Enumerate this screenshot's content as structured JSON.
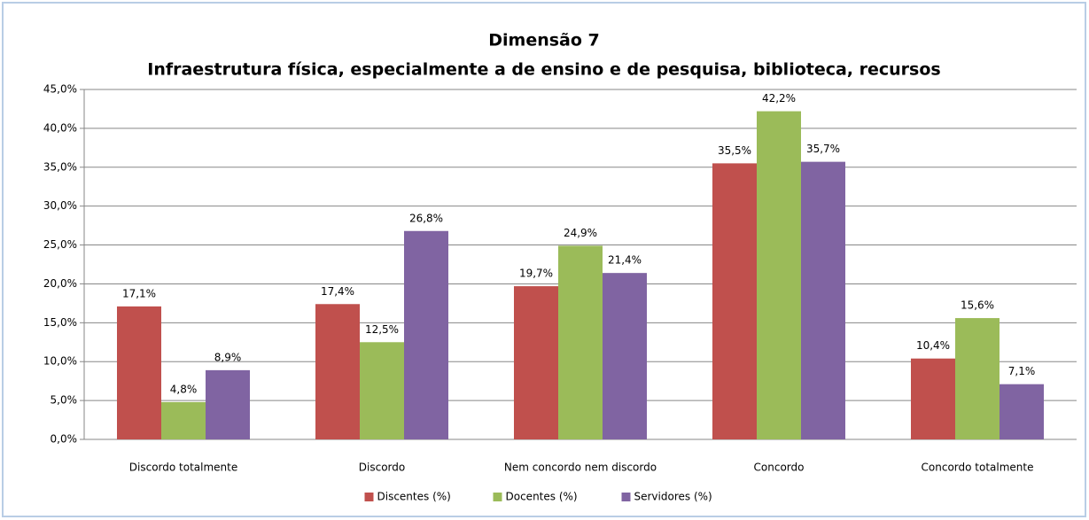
{
  "chart_data": {
    "type": "bar",
    "title": "Dimensão 7",
    "subtitle": "Infraestrutura física, especialmente a de ensino e  de pesquisa, biblioteca, recursos",
    "categories": [
      "Discordo totalmente",
      "Discordo",
      "Nem concordo nem discordo",
      "Concordo",
      "Concordo totalmente"
    ],
    "series": [
      {
        "name": "Discentes (%)",
        "color": "#c0504d",
        "values": [
          17.1,
          17.4,
          19.7,
          35.5,
          10.4
        ],
        "value_labels": [
          "17,1%",
          "17,4%",
          "19,7%",
          "35,5%",
          "10,4%"
        ]
      },
      {
        "name": "Docentes (%)",
        "color": "#9bbb59",
        "values": [
          4.8,
          12.5,
          24.9,
          42.2,
          15.6
        ],
        "value_labels": [
          "4,8%",
          "12,5%",
          "24,9%",
          "42,2%",
          "15,6%"
        ]
      },
      {
        "name": "Servidores (%)",
        "color": "#8064a2",
        "values": [
          8.9,
          26.8,
          21.4,
          35.7,
          7.1
        ],
        "value_labels": [
          "8,9%",
          "26,8%",
          "21,4%",
          "35,7%",
          "7,1%"
        ]
      }
    ],
    "ylim": [
      0,
      45
    ],
    "yticks": [
      {
        "value": 0,
        "label": "0,0%"
      },
      {
        "value": 5,
        "label": "5,0%"
      },
      {
        "value": 10,
        "label": "10,0%"
      },
      {
        "value": 15,
        "label": "15,0%"
      },
      {
        "value": 20,
        "label": "20,0%"
      },
      {
        "value": 25,
        "label": "25,0%"
      },
      {
        "value": 30,
        "label": "30,0%"
      },
      {
        "value": 35,
        "label": "35,0%"
      },
      {
        "value": 40,
        "label": "40,0%"
      },
      {
        "value": 45,
        "label": "45,0%"
      }
    ],
    "grid": true,
    "legend": "bottom"
  }
}
